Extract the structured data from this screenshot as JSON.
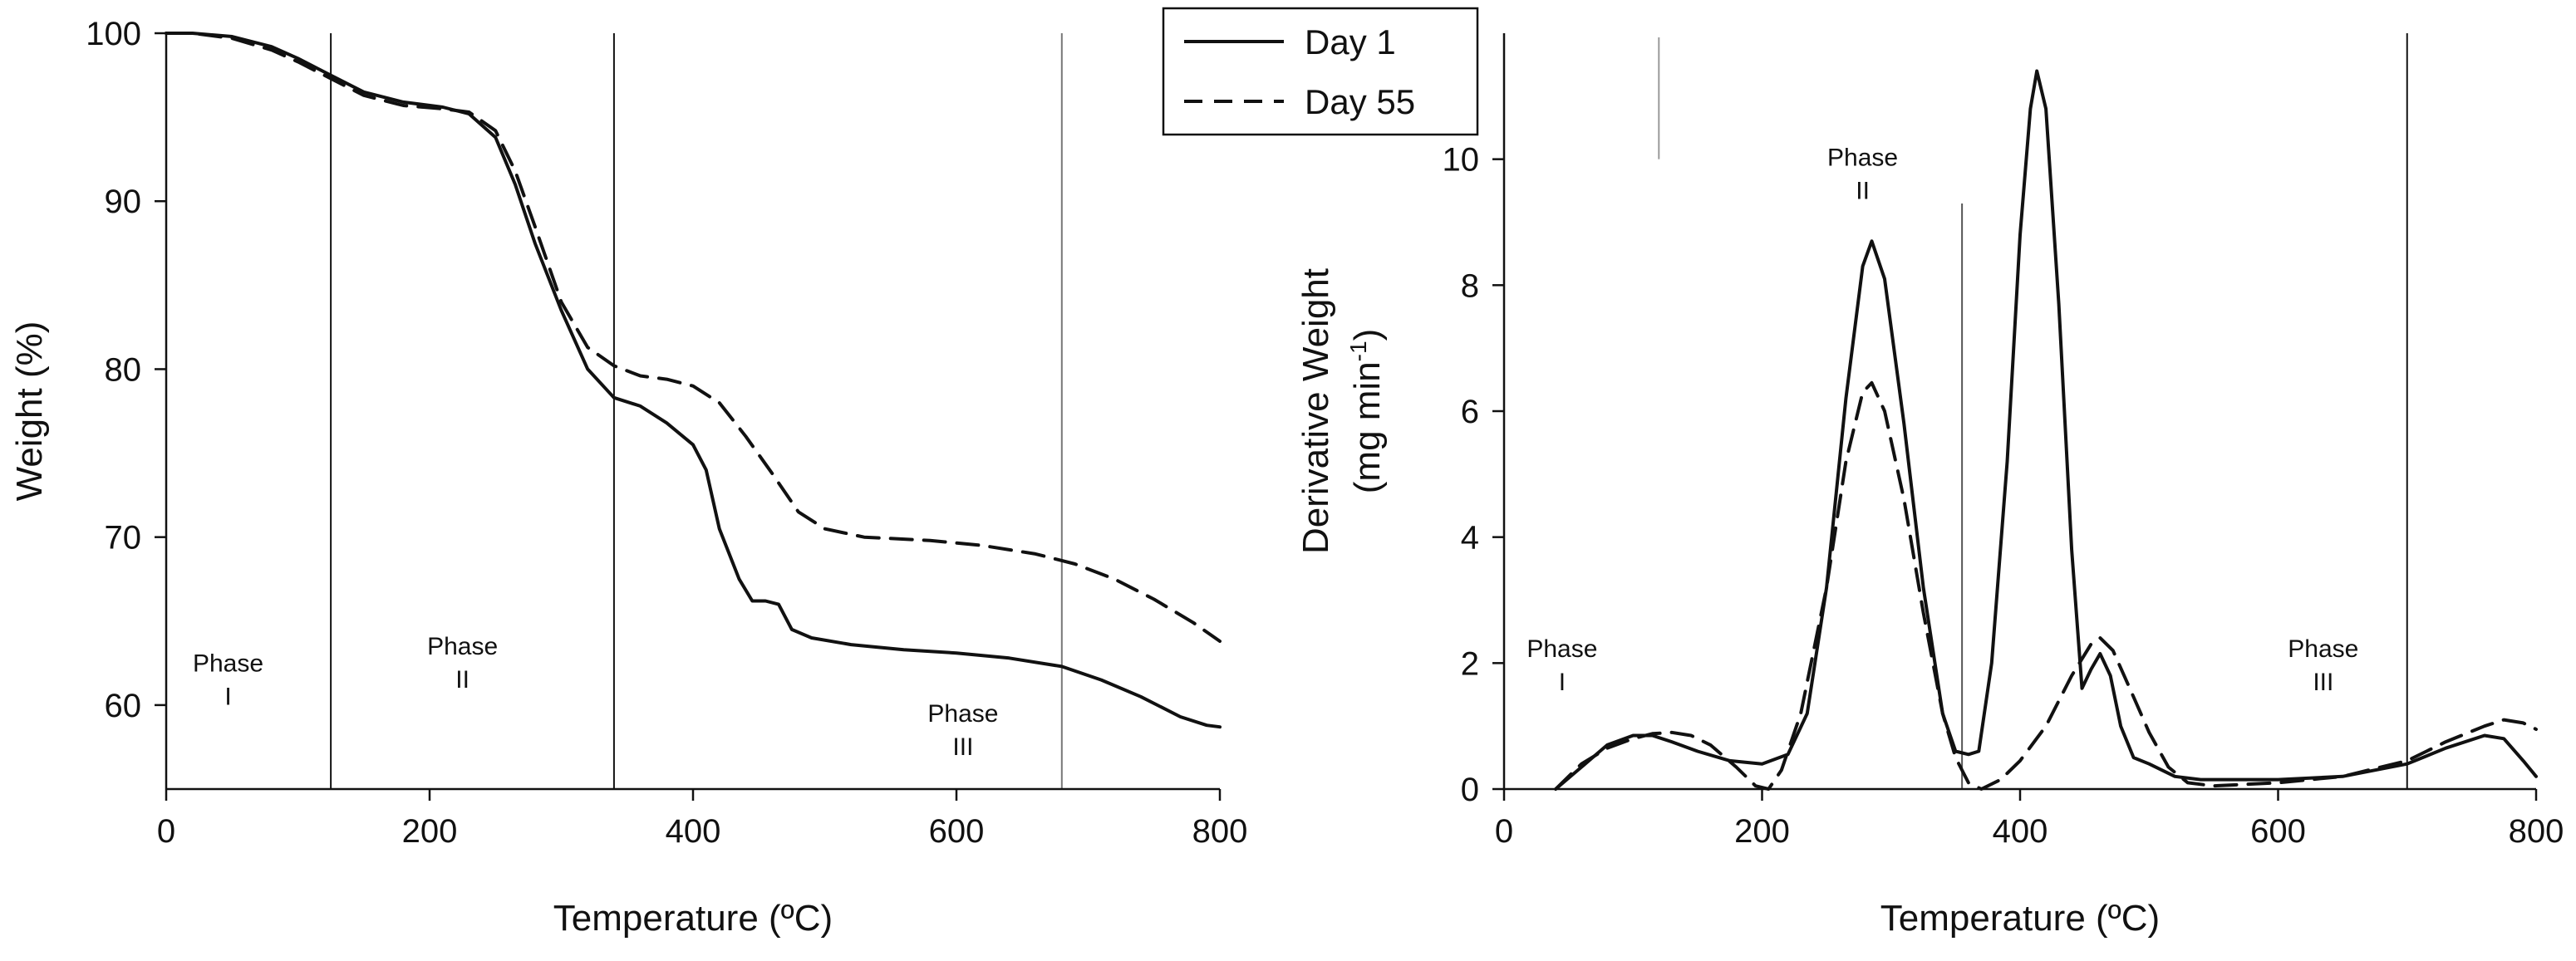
{
  "chart_data": [
    {
      "type": "line",
      "xlabel": "Temperature (ºC)",
      "ylabel": "Weight (%)",
      "xlim": [
        0,
        800
      ],
      "ylim": [
        55,
        100
      ],
      "xticks": [
        "0",
        "200",
        "400",
        "600",
        "800"
      ],
      "yticks": [
        "60",
        "70",
        "80",
        "90",
        "100"
      ],
      "grid": false,
      "phase_lines_x": [
        125,
        340,
        680
      ],
      "phase_labels": [
        {
          "name": "Phase",
          "numeral": "I",
          "x": 47,
          "y": 62
        },
        {
          "name": "Phase",
          "numeral": "II",
          "x": 225,
          "y": 63
        },
        {
          "name": "Phase",
          "numeral": "III",
          "x": 605,
          "y": 59
        }
      ],
      "series": [
        {
          "name": "Day 1",
          "style": "solid",
          "points": [
            [
              0,
              100
            ],
            [
              20,
              100
            ],
            [
              50,
              99.8
            ],
            [
              80,
              99.2
            ],
            [
              100,
              98.5
            ],
            [
              125,
              97.5
            ],
            [
              150,
              96.5
            ],
            [
              180,
              95.9
            ],
            [
              210,
              95.6
            ],
            [
              230,
              95.2
            ],
            [
              250,
              93.8
            ],
            [
              265,
              91
            ],
            [
              280,
              87.5
            ],
            [
              300,
              83.5
            ],
            [
              320,
              80
            ],
            [
              340,
              78.3
            ],
            [
              360,
              77.8
            ],
            [
              380,
              76.8
            ],
            [
              400,
              75.5
            ],
            [
              410,
              74
            ],
            [
              420,
              70.5
            ],
            [
              435,
              67.5
            ],
            [
              445,
              66.2
            ],
            [
              455,
              66.2
            ],
            [
              465,
              66
            ],
            [
              475,
              64.5
            ],
            [
              490,
              64
            ],
            [
              520,
              63.6
            ],
            [
              560,
              63.3
            ],
            [
              600,
              63.1
            ],
            [
              640,
              62.8
            ],
            [
              680,
              62.3
            ],
            [
              710,
              61.5
            ],
            [
              740,
              60.5
            ],
            [
              770,
              59.3
            ],
            [
              790,
              58.8
            ],
            [
              800,
              58.7
            ]
          ]
        },
        {
          "name": "Day 55",
          "style": "dashed",
          "points": [
            [
              0,
              100
            ],
            [
              20,
              100
            ],
            [
              50,
              99.7
            ],
            [
              80,
              99.0
            ],
            [
              100,
              98.3
            ],
            [
              125,
              97.3
            ],
            [
              150,
              96.3
            ],
            [
              180,
              95.7
            ],
            [
              210,
              95.5
            ],
            [
              230,
              95.3
            ],
            [
              250,
              94.2
            ],
            [
              265,
              91.8
            ],
            [
              280,
              88.5
            ],
            [
              300,
              84
            ],
            [
              320,
              81.3
            ],
            [
              340,
              80.2
            ],
            [
              360,
              79.6
            ],
            [
              380,
              79.4
            ],
            [
              400,
              79
            ],
            [
              420,
              78
            ],
            [
              440,
              76
            ],
            [
              460,
              73.8
            ],
            [
              480,
              71.5
            ],
            [
              500,
              70.5
            ],
            [
              530,
              70.0
            ],
            [
              580,
              69.8
            ],
            [
              620,
              69.5
            ],
            [
              660,
              69
            ],
            [
              690,
              68.4
            ],
            [
              720,
              67.5
            ],
            [
              750,
              66.3
            ],
            [
              780,
              64.9
            ],
            [
              800,
              63.8
            ]
          ]
        }
      ]
    },
    {
      "type": "line",
      "xlabel": "Temperature (ºC)",
      "ylabel": "Derivative Weight",
      "ylabel2": "(mg min-1)",
      "ylabel2_text": "(mg min",
      "ylabel2_sup": "-1",
      "ylabel2_end": ")",
      "xlim": [
        0,
        800
      ],
      "ylim": [
        0,
        12
      ],
      "xticks": [
        "0",
        "200",
        "400",
        "600",
        "800"
      ],
      "yticks": [
        "0",
        "2",
        "4",
        "6",
        "8",
        "10"
      ],
      "grid": false,
      "phase_lines_x": [
        120,
        355,
        700
      ],
      "phase_labels": [
        {
          "name": "Phase",
          "numeral": "I",
          "x": 45,
          "y": 2.1
        },
        {
          "name": "Phase",
          "numeral": "II",
          "x": 278,
          "y": 9.9
        },
        {
          "name": "Phase",
          "numeral": "III",
          "x": 635,
          "y": 2.1
        }
      ],
      "series": [
        {
          "name": "Day 1",
          "style": "solid",
          "points": [
            [
              40,
              0
            ],
            [
              60,
              0.35
            ],
            [
              80,
              0.7
            ],
            [
              100,
              0.85
            ],
            [
              115,
              0.85
            ],
            [
              130,
              0.75
            ],
            [
              150,
              0.6
            ],
            [
              175,
              0.45
            ],
            [
              200,
              0.4
            ],
            [
              220,
              0.55
            ],
            [
              235,
              1.2
            ],
            [
              250,
              3.2
            ],
            [
              265,
              6.2
            ],
            [
              278,
              8.3
            ],
            [
              285,
              8.7
            ],
            [
              295,
              8.1
            ],
            [
              310,
              5.8
            ],
            [
              325,
              3.2
            ],
            [
              340,
              1.2
            ],
            [
              350,
              0.6
            ],
            [
              360,
              0.55
            ],
            [
              368,
              0.6
            ],
            [
              378,
              2.0
            ],
            [
              390,
              5.2
            ],
            [
              400,
              8.8
            ],
            [
              408,
              10.8
            ],
            [
              413,
              11.4
            ],
            [
              420,
              10.8
            ],
            [
              430,
              7.7
            ],
            [
              440,
              3.8
            ],
            [
              448,
              1.6
            ],
            [
              455,
              1.9
            ],
            [
              462,
              2.15
            ],
            [
              470,
              1.8
            ],
            [
              478,
              1.0
            ],
            [
              488,
              0.5
            ],
            [
              500,
              0.4
            ],
            [
              520,
              0.2
            ],
            [
              540,
              0.15
            ],
            [
              600,
              0.15
            ],
            [
              650,
              0.2
            ],
            [
              700,
              0.4
            ],
            [
              730,
              0.65
            ],
            [
              760,
              0.85
            ],
            [
              775,
              0.8
            ],
            [
              790,
              0.45
            ],
            [
              800,
              0.2
            ]
          ]
        },
        {
          "name": "Day 55",
          "style": "dashed",
          "points": [
            [
              40,
              0
            ],
            [
              60,
              0.4
            ],
            [
              80,
              0.65
            ],
            [
              100,
              0.8
            ],
            [
              115,
              0.88
            ],
            [
              130,
              0.9
            ],
            [
              145,
              0.85
            ],
            [
              160,
              0.7
            ],
            [
              180,
              0.35
            ],
            [
              195,
              0.05
            ],
            [
              205,
              0
            ],
            [
              215,
              0.3
            ],
            [
              230,
              1.2
            ],
            [
              250,
              3.2
            ],
            [
              265,
              5.2
            ],
            [
              278,
              6.3
            ],
            [
              285,
              6.45
            ],
            [
              295,
              6
            ],
            [
              310,
              4.6
            ],
            [
              325,
              2.8
            ],
            [
              340,
              1.2
            ],
            [
              350,
              0.5
            ],
            [
              360,
              0.1
            ],
            [
              370,
              0
            ],
            [
              385,
              0.15
            ],
            [
              400,
              0.45
            ],
            [
              420,
              1.0
            ],
            [
              440,
              1.8
            ],
            [
              455,
              2.3
            ],
            [
              462,
              2.4
            ],
            [
              472,
              2.2
            ],
            [
              485,
              1.6
            ],
            [
              500,
              0.9
            ],
            [
              515,
              0.35
            ],
            [
              530,
              0.1
            ],
            [
              550,
              0.05
            ],
            [
              600,
              0.1
            ],
            [
              650,
              0.2
            ],
            [
              700,
              0.45
            ],
            [
              730,
              0.75
            ],
            [
              760,
              1.0
            ],
            [
              775,
              1.1
            ],
            [
              790,
              1.05
            ],
            [
              800,
              0.95
            ]
          ]
        }
      ]
    }
  ],
  "legend": {
    "items": [
      {
        "label": "Day 1",
        "style": "solid"
      },
      {
        "label": "Day 55",
        "style": "dashed"
      }
    ]
  }
}
